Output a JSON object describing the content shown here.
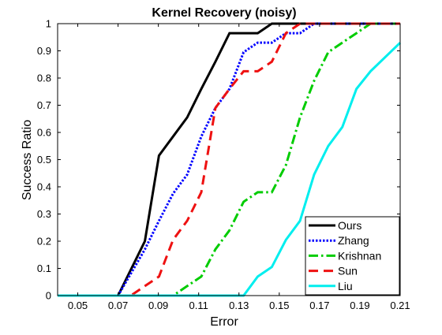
{
  "chart_data": {
    "type": "line",
    "title": "Kernel Recovery (noisy)",
    "xlabel": "Error",
    "ylabel": "Success Ratio",
    "xlim": [
      0.04,
      0.21
    ],
    "ylim": [
      0,
      1
    ],
    "xticks": [
      0.05,
      0.07,
      0.09,
      0.11,
      0.13,
      0.15,
      0.17,
      0.19,
      0.21
    ],
    "xtick_labels": [
      "0.05",
      "0.07",
      "0.09",
      "0.11",
      "0.13",
      "0.15",
      "0.17",
      "0.19",
      "0.21"
    ],
    "yticks": [
      0,
      0.1,
      0.2,
      0.3,
      0.4,
      0.5,
      0.6,
      0.7,
      0.8,
      0.9,
      1
    ],
    "ytick_labels": [
      "0",
      "0.1",
      "0.2",
      "0.3",
      "0.4",
      "0.5",
      "0.6",
      "0.7",
      "0.8",
      "0.9",
      "1"
    ],
    "grid": false,
    "legend_position": "bottom-right",
    "series": [
      {
        "name": "Ours",
        "color": "#000000",
        "dash": "solid",
        "width": 3,
        "x": [
          0.04,
          0.07,
          0.0833,
          0.0903,
          0.0973,
          0.1043,
          0.1113,
          0.1183,
          0.1253,
          0.1393,
          0.1463,
          0.21
        ],
        "y": [
          0,
          0,
          0.2,
          0.515,
          0.585,
          0.655,
          0.76,
          0.86,
          0.965,
          0.965,
          1,
          1
        ]
      },
      {
        "name": "Zhang",
        "color": "#0000ff",
        "dash": "dotted",
        "width": 3,
        "x": [
          0.04,
          0.07,
          0.0833,
          0.0903,
          0.0973,
          0.1043,
          0.1113,
          0.1183,
          0.1253,
          0.1323,
          0.1393,
          0.1463,
          0.1533,
          0.1603,
          0.1673,
          0.21
        ],
        "y": [
          0,
          0,
          0.17,
          0.275,
          0.375,
          0.445,
          0.585,
          0.69,
          0.76,
          0.895,
          0.93,
          0.93,
          0.965,
          0.965,
          1,
          1
        ]
      },
      {
        "name": "Krishnan",
        "color": "#00cc00",
        "dash": "dashdot",
        "width": 3,
        "x": [
          0.04,
          0.0973,
          0.1043,
          0.1113,
          0.1183,
          0.1253,
          0.1323,
          0.1393,
          0.1463,
          0.1533,
          0.1603,
          0.1673,
          0.1743,
          0.1813,
          0.1883,
          0.1953,
          0.21
        ],
        "y": [
          0,
          0,
          0.035,
          0.07,
          0.17,
          0.24,
          0.345,
          0.38,
          0.38,
          0.48,
          0.655,
          0.79,
          0.895,
          0.93,
          0.965,
          1,
          1
        ]
      },
      {
        "name": "Sun",
        "color": "#ee1111",
        "dash": "dashed",
        "width": 3,
        "x": [
          0.04,
          0.0763,
          0.0833,
          0.0903,
          0.0973,
          0.1043,
          0.1113,
          0.1183,
          0.1253,
          0.1323,
          0.1393,
          0.1463,
          0.1533,
          0.1603,
          0.1673,
          0.21
        ],
        "y": [
          0,
          0,
          0.035,
          0.07,
          0.205,
          0.275,
          0.38,
          0.69,
          0.76,
          0.825,
          0.825,
          0.86,
          0.965,
          1,
          1,
          1
        ]
      },
      {
        "name": "Liu",
        "color": "#00eeee",
        "dash": "solid",
        "width": 3,
        "x": [
          0.04,
          0.1323,
          0.1393,
          0.1463,
          0.1533,
          0.1603,
          0.1673,
          0.1743,
          0.1813,
          0.1883,
          0.1953,
          0.21
        ],
        "y": [
          0,
          0,
          0.07,
          0.105,
          0.205,
          0.275,
          0.445,
          0.55,
          0.62,
          0.76,
          0.825,
          0.93
        ]
      }
    ]
  }
}
